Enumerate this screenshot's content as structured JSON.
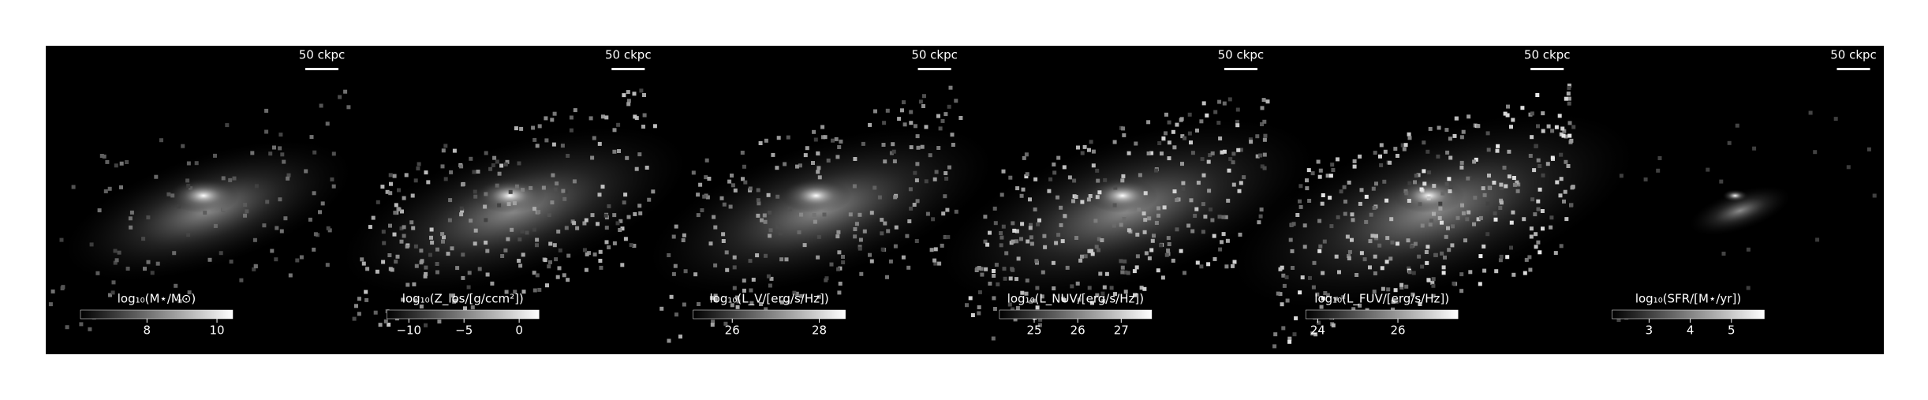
{
  "panels": [
    {
      "scale_label": "50 ckpc",
      "colorbar": {
        "label": "log₁₀(M⋆/M⊙)",
        "lim": [
          6.1,
          10.45
        ],
        "ticks": [
          8,
          10
        ]
      }
    },
    {
      "scale_label": "50 ckpc",
      "colorbar": {
        "label": "log₁₀(Z_los/[g/ccm²])",
        "lim": [
          -12,
          1.8
        ],
        "ticks": [
          {
            "value": -10,
            "label": "−10"
          },
          {
            "value": -5,
            "label": "−5"
          },
          0
        ]
      }
    },
    {
      "scale_label": "50 ckpc",
      "colorbar": {
        "label": "log₁₀(L_V/[erg/s/Hz])",
        "lim": [
          25.1,
          28.6
        ],
        "ticks": [
          26,
          28
        ]
      }
    },
    {
      "scale_label": "50 ckpc",
      "colorbar": {
        "label": "log₁₀(L_NUV/[erg/s/Hz])",
        "lim": [
          24.2,
          27.7
        ],
        "ticks": [
          25,
          26,
          27
        ]
      }
    },
    {
      "scale_label": "50 ckpc",
      "colorbar": {
        "label": "log₁₀(L_FUV/[erg/s/Hz])",
        "lim": [
          23.7,
          27.5
        ],
        "ticks": [
          24,
          26
        ]
      }
    },
    {
      "scale_label": "50 ckpc",
      "colorbar": {
        "label": "log₁₀(SFR/[M⋆/yr])",
        "lim": [
          2.1,
          5.8
        ],
        "ticks": [
          3,
          4,
          5
        ]
      }
    }
  ]
}
